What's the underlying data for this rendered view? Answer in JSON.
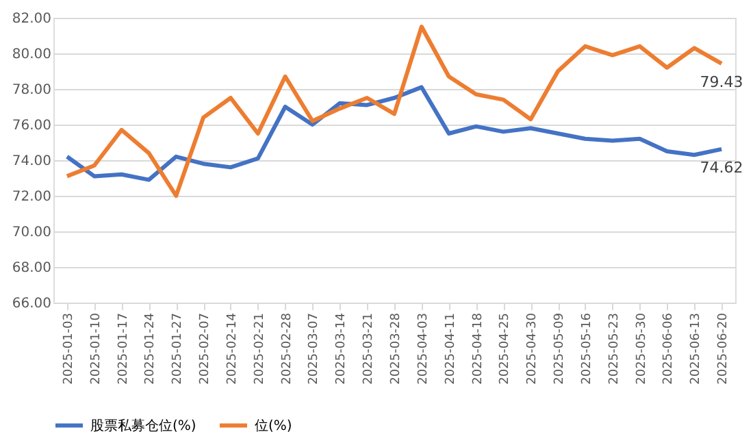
{
  "chart_data": {
    "type": "line",
    "categories": [
      "2025-01-03",
      "2025-01-10",
      "2025-01-17",
      "2025-01-24",
      "2025-01-27",
      "2025-02-07",
      "2025-02-14",
      "2025-02-21",
      "2025-02-28",
      "2025-03-07",
      "2025-03-14",
      "2025-03-21",
      "2025-03-28",
      "2025-04-03",
      "2025-04-11",
      "2025-04-18",
      "2025-04-25",
      "2025-04-30",
      "2025-05-09",
      "2025-05-16",
      "2025-05-23",
      "2025-05-30",
      "2025-06-06",
      "2025-06-13",
      "2025-06-20"
    ],
    "series": [
      {
        "name": "股票私募仓位(%)",
        "color": "#4472c4",
        "values": [
          74.2,
          73.1,
          73.2,
          72.9,
          74.2,
          73.8,
          73.6,
          74.1,
          77.0,
          76.0,
          77.2,
          77.1,
          77.5,
          78.1,
          75.5,
          75.9,
          75.6,
          75.8,
          75.5,
          75.2,
          75.1,
          75.2,
          74.5,
          74.3,
          74.62
        ],
        "value_labels": [
          null,
          null,
          null,
          null,
          null,
          null,
          null,
          null,
          null,
          null,
          null,
          null,
          null,
          null,
          null,
          null,
          null,
          null,
          null,
          null,
          null,
          null,
          null,
          null,
          "74.62"
        ]
      },
      {
        "name": "位(%)",
        "color": "#ed7d31",
        "values": [
          73.1,
          73.7,
          75.7,
          74.4,
          72.0,
          76.4,
          77.5,
          75.5,
          78.7,
          76.2,
          76.9,
          77.5,
          76.6,
          81.5,
          78.7,
          77.7,
          77.4,
          76.3,
          79.0,
          80.4,
          79.9,
          80.4,
          79.2,
          80.3,
          79.43
        ],
        "value_labels": [
          null,
          null,
          null,
          null,
          null,
          null,
          null,
          null,
          null,
          null,
          null,
          null,
          null,
          null,
          null,
          null,
          null,
          null,
          null,
          null,
          null,
          null,
          null,
          null,
          "79.43"
        ]
      }
    ],
    "ylim": [
      66,
      82
    ],
    "yticks": [
      {
        "value": 66,
        "label": "66.00"
      },
      {
        "value": 68,
        "label": "68.00"
      },
      {
        "value": 70,
        "label": "70.00"
      },
      {
        "value": 72,
        "label": "72.00"
      },
      {
        "value": 74,
        "label": "74.00"
      },
      {
        "value": 76,
        "label": "76.00"
      },
      {
        "value": 78,
        "label": "78.00"
      },
      {
        "value": 80,
        "label": "80.00"
      },
      {
        "value": 82,
        "label": "82.00"
      }
    ],
    "grid": "y",
    "legend": "bottom",
    "marker": "none",
    "line_style": "solid"
  }
}
